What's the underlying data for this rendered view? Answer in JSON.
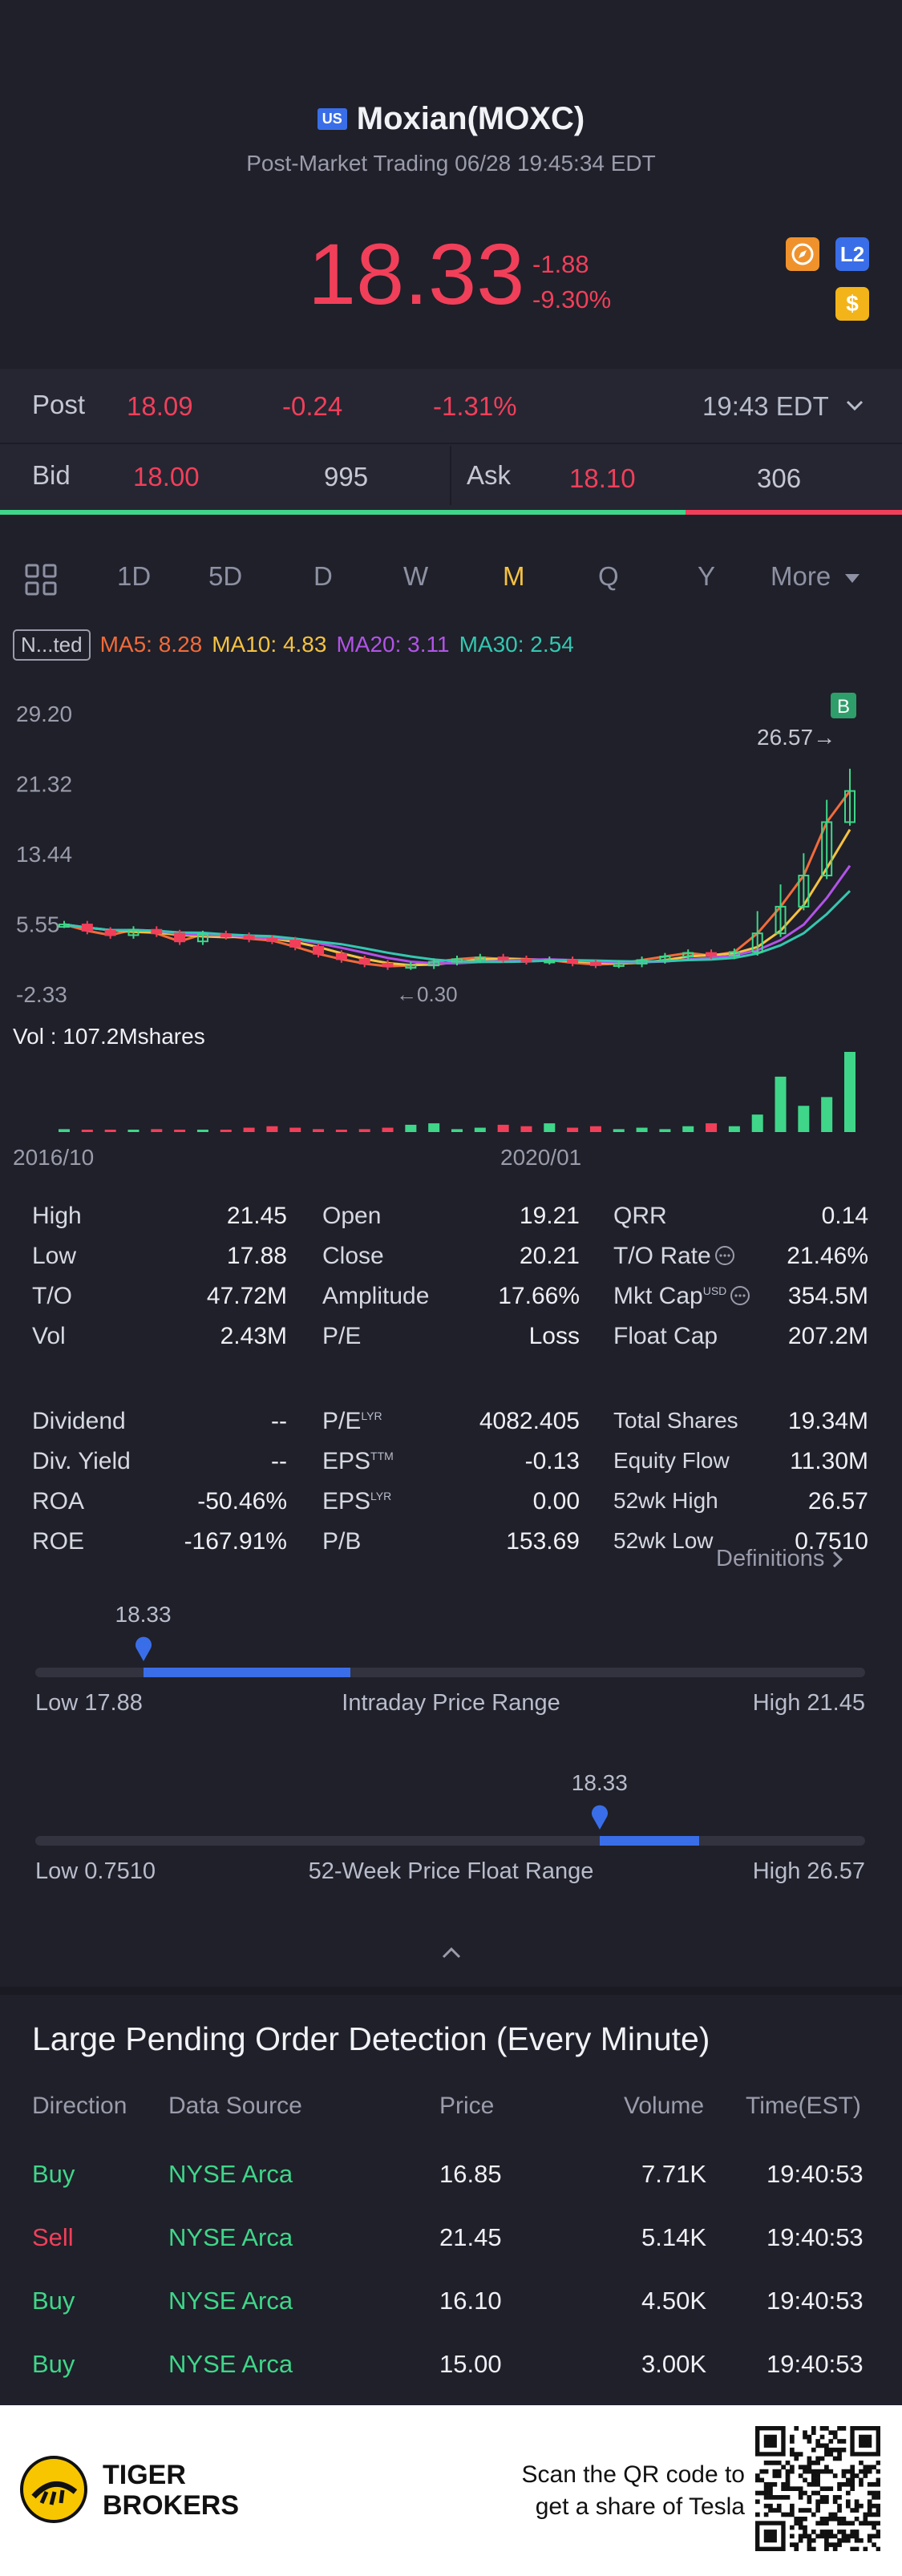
{
  "header": {
    "market_badge": "US",
    "title": "Moxian(MOXC)",
    "subtitle": "Post-Market Trading 06/28 19:45:34 EDT",
    "price": "18.33",
    "change": "-1.88",
    "change_pct": "-9.30%",
    "badges": [
      "compass-icon",
      "L2",
      "$"
    ],
    "colors": {
      "down": "#f13f5a",
      "up": "#3fd68a",
      "accent": "#f5c242",
      "blue": "#3a6ee8"
    }
  },
  "post": {
    "label": "Post",
    "price": "18.09",
    "change": "-0.24",
    "change_pct": "-1.31%",
    "time": "19:43 EDT"
  },
  "bidask": {
    "bid_label": "Bid",
    "bid_price": "18.00",
    "bid_vol": "995",
    "ask_label": "Ask",
    "ask_price": "18.10",
    "ask_vol": "306",
    "bid_share": 0.76
  },
  "tabs": {
    "items": [
      "1D",
      "5D",
      "D",
      "W",
      "M",
      "Q",
      "Y",
      "More"
    ],
    "active": "M"
  },
  "indicators": {
    "adjust_label": "N...ted",
    "ma5": "MA5: 8.28",
    "ma10": "MA10: 4.83",
    "ma20": "MA20: 3.11",
    "ma30": "MA30: 2.54"
  },
  "chart_data": {
    "type": "candlestick",
    "y_ticks": [
      "29.20",
      "21.32",
      "13.44",
      "5.55",
      "-2.33"
    ],
    "x_ticks": [
      "2016/10",
      "2020/01"
    ],
    "max_marker": "26.57",
    "min_marker": "0.30",
    "volume_label": "Vol  : 107.2Mshares",
    "b_marker": "B",
    "close_series": [
      5.5,
      4.8,
      4.3,
      4.9,
      4.5,
      3.6,
      4.4,
      4.2,
      3.9,
      3.7,
      3.0,
      2.2,
      1.6,
      1.1,
      0.8,
      0.9,
      1.3,
      1.6,
      1.8,
      1.6,
      1.4,
      1.5,
      1.2,
      1.0,
      1.1,
      1.5,
      1.9,
      2.3,
      2.0,
      2.4,
      4.5,
      7.5,
      11.0,
      17.0,
      20.5
    ],
    "volumes": [
      2,
      1,
      1,
      1,
      2,
      1,
      1,
      1,
      3,
      4,
      3,
      2,
      1,
      2,
      3,
      5,
      6,
      2,
      3,
      5,
      4,
      6,
      3,
      4,
      2,
      3,
      2,
      4,
      6,
      4,
      12,
      38,
      18,
      24,
      55
    ],
    "ylim": [
      -2.33,
      29.2
    ]
  },
  "stats": {
    "col1": [
      [
        "High",
        "21.45"
      ],
      [
        "Low",
        "17.88"
      ],
      [
        "T/O",
        "47.72M"
      ],
      [
        "Vol",
        "2.43M"
      ],
      [
        "Dividend",
        "--"
      ],
      [
        "Div. Yield",
        "--"
      ],
      [
        "ROA",
        "-50.46%"
      ],
      [
        "ROE",
        "-167.91%"
      ]
    ],
    "col2": [
      [
        "Open",
        "19.21"
      ],
      [
        "Close",
        "20.21"
      ],
      [
        "Amplitude",
        "17.66%"
      ],
      [
        "P/E",
        "Loss"
      ],
      [
        "P/E",
        "4082.405"
      ],
      [
        "EPS",
        "-0.13"
      ],
      [
        "EPS",
        "0.00"
      ],
      [
        "P/B",
        "153.69"
      ]
    ],
    "col2_sups": [
      "",
      "",
      "",
      "",
      "LYR",
      "TTM",
      "LYR",
      ""
    ],
    "col3": [
      [
        "QRR",
        "0.14"
      ],
      [
        "T/O Rate",
        "21.46%"
      ],
      [
        "Mkt Cap",
        "354.5M"
      ],
      [
        "Float Cap",
        "207.2M"
      ],
      [
        "Total Shares",
        "19.34M"
      ],
      [
        "Equity Flow",
        "11.30M"
      ],
      [
        "52wk High",
        "26.57"
      ],
      [
        "52wk Low",
        "0.7510"
      ]
    ],
    "mkt_cap_sup": "USD",
    "definitions": "Definitions"
  },
  "ranges": {
    "intraday": {
      "current": "18.33",
      "low": "Low 17.88",
      "title": "Intraday Price Range",
      "high": "High 21.45",
      "position": 0.13,
      "fill_start": 0.13,
      "fill_end": 0.38
    },
    "week52": {
      "current": "18.33",
      "low": "Low 0.7510",
      "title": "52-Week Price Float Range",
      "high": "High 26.57",
      "position": 0.68,
      "fill_start": 0.68,
      "fill_end": 0.8
    }
  },
  "orders": {
    "title": "Large Pending Order Detection (Every Minute)",
    "headers": [
      "Direction",
      "Data Source",
      "Price",
      "Volume",
      "Time(EST)"
    ],
    "rows": [
      [
        "Buy",
        "NYSE Arca",
        "16.85",
        "7.71K",
        "19:40:53"
      ],
      [
        "Sell",
        "NYSE Arca",
        "21.45",
        "5.14K",
        "19:40:53"
      ],
      [
        "Buy",
        "NYSE Arca",
        "16.10",
        "4.50K",
        "19:40:53"
      ],
      [
        "Buy",
        "NYSE Arca",
        "15.00",
        "3.00K",
        "19:40:53"
      ]
    ]
  },
  "footer": {
    "brand_line1": "TIGER",
    "brand_line2": "BROKERS",
    "cta_line1": "Scan the QR code to",
    "cta_line2": "get a share of Tesla"
  }
}
